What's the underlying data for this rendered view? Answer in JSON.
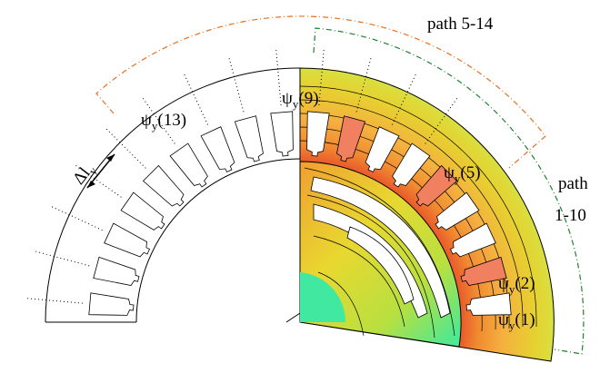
{
  "labels": {
    "path_5_14": "path 5-14",
    "path_1_10": {
      "line1": "path",
      "line2": "1-10"
    },
    "psi_13": {
      "symbol": "ψ",
      "sub": "y",
      "arg": "(13)"
    },
    "psi_9": {
      "symbol": "ψ",
      "sub": "y",
      "arg": "(9)"
    },
    "psi_5": {
      "symbol": "ψ",
      "sub": "y",
      "arg": "(5)"
    },
    "psi_2": {
      "symbol": "ψ",
      "sub": "y",
      "arg": "(2)"
    },
    "psi_1": {
      "symbol": "ψ",
      "sub": "y",
      "arg": "(1)"
    },
    "delta_l": {
      "symbol": "Δl",
      "sub": "y"
    }
  }
}
